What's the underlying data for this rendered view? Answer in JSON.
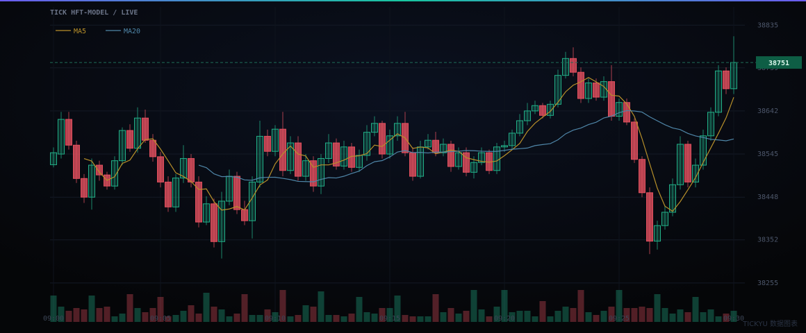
{
  "chart_data": {
    "type": "candlestick",
    "title": "TICK  HFT-MODEL / LIVE",
    "watermark": "TICKYU 数据图表",
    "categories": [
      "09:00",
      null,
      null,
      null,
      null,
      null,
      null,
      null,
      null,
      null,
      null,
      null,
      null,
      null,
      "09:05",
      null,
      null,
      null,
      null,
      null,
      null,
      null,
      null,
      null,
      null,
      null,
      null,
      null,
      null,
      "09:10",
      null,
      null,
      null,
      null,
      null,
      null,
      null,
      null,
      null,
      null,
      null,
      null,
      null,
      null,
      "09:15",
      null,
      null,
      null,
      null,
      null,
      null,
      null,
      null,
      null,
      null,
      null,
      null,
      null,
      null,
      "09:20",
      null,
      null,
      null,
      null,
      null,
      null,
      null,
      null,
      null,
      null,
      null,
      null,
      null,
      null,
      "09:25",
      null,
      null,
      null,
      null,
      null,
      null,
      null,
      null,
      null,
      null,
      null,
      null,
      null,
      null,
      "09:30"
    ],
    "open": [
      38521,
      38545,
      38623,
      38565,
      38490,
      38448,
      38520,
      38498,
      38473,
      38530,
      38598,
      38558,
      38626,
      38576,
      38539,
      38482,
      38426,
      38491,
      38535,
      38482,
      38392,
      38433,
      38348,
      38439,
      38495,
      38420,
      38395,
      38482,
      38585,
      38551,
      38601,
      38508,
      38570,
      38495,
      38530,
      38473,
      38535,
      38570,
      38518,
      38561,
      38515,
      38542,
      38594,
      38614,
      38545,
      38586,
      38614,
      38548,
      38495,
      38561,
      38576,
      38548,
      38567,
      38517,
      38548,
      38504,
      38526,
      38548,
      38508,
      38561,
      38564,
      38592,
      38620,
      38642,
      38654,
      38632,
      38657,
      38722,
      38760,
      38729,
      38670,
      38705,
      38673,
      38708,
      38630,
      38661,
      38617,
      38533,
      38458,
      38349,
      38384,
      38414,
      38476,
      38567,
      38482,
      38520,
      38586,
      38639,
      38732,
      38692
    ],
    "high": [
      38560,
      38640,
      38640,
      38575,
      38500,
      38535,
      38530,
      38505,
      38540,
      38605,
      38612,
      38650,
      38645,
      38590,
      38550,
      38495,
      38500,
      38565,
      38545,
      38495,
      38450,
      38445,
      38460,
      38510,
      38505,
      38440,
      38495,
      38620,
      38600,
      38610,
      38640,
      38585,
      38585,
      38545,
      38540,
      38545,
      38590,
      38580,
      38575,
      38570,
      38555,
      38610,
      38630,
      38620,
      38600,
      38630,
      38640,
      38560,
      38575,
      38590,
      38595,
      38580,
      38575,
      38560,
      38560,
      38540,
      38560,
      38555,
      38570,
      38575,
      38600,
      38635,
      38660,
      38665,
      38660,
      38665,
      38735,
      38775,
      38785,
      38740,
      38715,
      38715,
      38720,
      38745,
      38670,
      38670,
      38625,
      38540,
      38470,
      38395,
      38430,
      38490,
      38585,
      38575,
      38535,
      38600,
      38650,
      38745,
      38740,
      38810
    ],
    "low": [
      38515,
      38535,
      38555,
      38480,
      38435,
      38420,
      38485,
      38465,
      38465,
      38520,
      38550,
      38548,
      38570,
      38528,
      38470,
      38415,
      38415,
      38480,
      38470,
      38380,
      38385,
      38335,
      38310,
      38430,
      38410,
      38385,
      38355,
      38470,
      38540,
      38540,
      38495,
      38500,
      38485,
      38485,
      38460,
      38455,
      38525,
      38510,
      38510,
      38505,
      38505,
      38530,
      38585,
      38535,
      38535,
      38575,
      38540,
      38485,
      38490,
      38555,
      38540,
      38540,
      38505,
      38510,
      38495,
      38490,
      38520,
      38500,
      38500,
      38550,
      38555,
      38585,
      38610,
      38635,
      38625,
      38625,
      38650,
      38715,
      38720,
      38660,
      38660,
      38665,
      38665,
      38620,
      38620,
      38610,
      38525,
      38448,
      38320,
      38330,
      38375,
      38405,
      38465,
      38470,
      38470,
      38510,
      38575,
      38630,
      38680,
      38680
    ],
    "close": [
      38548,
      38623,
      38565,
      38490,
      38448,
      38520,
      38498,
      38473,
      38530,
      38598,
      38558,
      38626,
      38576,
      38539,
      38482,
      38426,
      38491,
      38535,
      38482,
      38392,
      38433,
      38348,
      38439,
      38495,
      38420,
      38395,
      38482,
      38585,
      38551,
      38601,
      38508,
      38570,
      38495,
      38530,
      38473,
      38535,
      38570,
      38518,
      38561,
      38515,
      38542,
      38594,
      38614,
      38545,
      38586,
      38614,
      38548,
      38495,
      38561,
      38576,
      38548,
      38567,
      38517,
      38548,
      38504,
      38526,
      38548,
      38508,
      38561,
      38564,
      38592,
      38620,
      38642,
      38654,
      38632,
      38657,
      38722,
      38760,
      38729,
      38670,
      38705,
      38673,
      38708,
      38630,
      38661,
      38617,
      38533,
      38458,
      38349,
      38384,
      38414,
      38476,
      38567,
      38482,
      38520,
      38586,
      38639,
      38732,
      38692,
      38751
    ],
    "volume": [
      38,
      22,
      16,
      20,
      18,
      38,
      20,
      22,
      8,
      12,
      40,
      20,
      14,
      20,
      36,
      8,
      10,
      16,
      24,
      12,
      42,
      22,
      18,
      8,
      12,
      40,
      10,
      10,
      18,
      14,
      46,
      8,
      10,
      24,
      22,
      44,
      10,
      10,
      8,
      12,
      36,
      14,
      12,
      20,
      20,
      38,
      10,
      8,
      8,
      8,
      40,
      14,
      20,
      12,
      16,
      46,
      18,
      8,
      22,
      46,
      14,
      16,
      16,
      8,
      30,
      8,
      16,
      22,
      20,
      46,
      14,
      10,
      16,
      22,
      46,
      20,
      20,
      22,
      20,
      40,
      20,
      12,
      18,
      14,
      36,
      14,
      18,
      8,
      12,
      16
    ],
    "series": [
      {
        "name": "MA5",
        "color": "#b8902a",
        "values": [
          null,
          null,
          null,
          null,
          38534.8,
          38529.2,
          38504.2,
          38485.8,
          38493.8,
          38523.8,
          38531.4,
          38557,
          38577.6,
          38579.4,
          38556.2,
          38529.8,
          38502.8,
          38494.6,
          38483.2,
          38465.2,
          38466.6,
          38438,
          38418.8,
          38421.4,
          38427,
          38419.4,
          38446.2,
          38475.4,
          38486.6,
          38522.8,
          38545.4,
          38563,
          38545,
          38540.8,
          38515.2,
          38520.6,
          38520.6,
          38525.2,
          38531.4,
          38539.8,
          38541.2,
          38546,
          38565.2,
          38562,
          38576.2,
          38590.6,
          38581.4,
          38557.6,
          38560.8,
          38558.8,
          38545.6,
          38549.4,
          38553.8,
          38551.2,
          38536.8,
          38532.4,
          38528.6,
          38526.8,
          38529.4,
          38541.4,
          38554.6,
          38569,
          38595.8,
          38614.4,
          38628,
          38641,
          38661.4,
          38685,
          38700,
          38707.6,
          38717.2,
          38707.4,
          38697,
          38677.2,
          38675.4,
          38657.8,
          38629.8,
          38579.8,
          38523.6,
          38468.2,
          38427.6,
          38416.2,
          38438,
          38464.6,
          38491.8,
          38526.2,
          38558.8,
          38591.8,
          38626.6,
          38672.8
        ]
      },
      {
        "name": "MA20",
        "color": "#4f86a8",
        "values": [
          null,
          null,
          null,
          null,
          null,
          null,
          null,
          null,
          null,
          null,
          null,
          null,
          null,
          null,
          null,
          null,
          null,
          null,
          null,
          38520,
          38514.3,
          38500.5,
          38494.2,
          38494.5,
          38493.1,
          38486.8,
          38486,
          38491.6,
          38492.7,
          38492.8,
          38490.3,
          38487.5,
          38483.5,
          38483,
          38482.6,
          38488,
          38492,
          38491.1,
          38495.1,
          38501.2,
          38506.7,
          38519,
          38527.7,
          38530.2,
          38538.5,
          38549.5,
          38552.8,
          38548.3,
          38548.8,
          38547.5,
          38549.5,
          38549.4,
          38550.5,
          38551.4,
          38552.9,
          38552.5,
          38551.4,
          38550.9,
          38550.9,
          38553.3,
          38555.8,
          38557.1,
          38558.5,
          38564,
          38566.3,
          38568.4,
          38577.1,
          38590.4,
          38598.8,
          38603.5,
          38611.3,
          38616.6,
          38626.2,
          38630.3,
          38638.1,
          38642.7,
          38641.9,
          38639.4,
          38628.8,
          38619.8,
          38610.9,
          38603.7,
          38600,
          38591.4,
          38585.8,
          38582.2,
          38578.1,
          38576.7,
          38574.8,
          38578.9
        ]
      }
    ],
    "last_price": 38751,
    "up_color": "#22b088",
    "down_color": "#e2505f",
    "ylim": [
      38236,
      38876
    ],
    "yticks": [
      38255,
      38352,
      38448,
      38545,
      38642,
      38739,
      38835
    ],
    "grid": true
  }
}
